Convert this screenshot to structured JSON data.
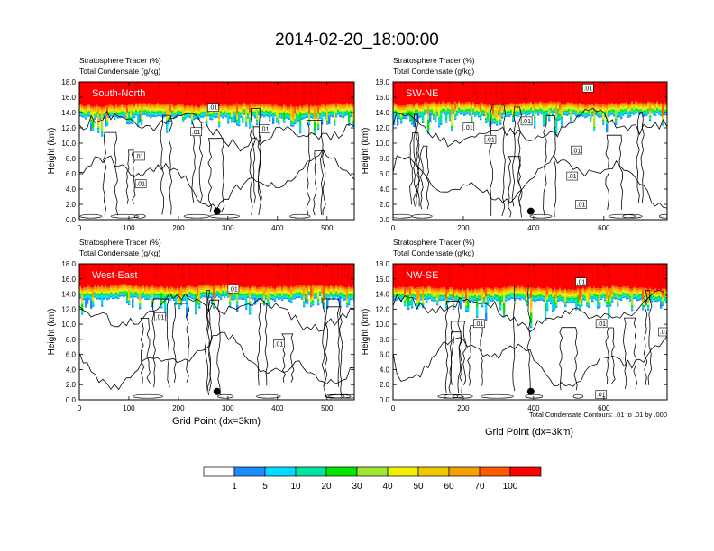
{
  "title": "2014-02-20_18:00:00",
  "colors": [
    "#ffffff",
    "#1e8cff",
    "#00dcff",
    "#00e6a0",
    "#00e600",
    "#a0e632",
    "#f0f000",
    "#f0c800",
    "#f5a000",
    "#ff5a00",
    "#ff0000"
  ],
  "chart_data": {
    "type": "heatmap",
    "variables": {
      "shaded": "Stratosphere Tracer (%)",
      "contour": "Total Condensate (g/kg)"
    },
    "colorbar": {
      "levels": [
        1,
        5,
        10,
        20,
        30,
        40,
        50,
        60,
        70,
        100
      ],
      "label_values": [
        "1",
        "5",
        "10",
        "20",
        "30",
        "40",
        "50",
        "60",
        "70",
        "100"
      ]
    },
    "contour_info": "Total Condensate Contours: .01 to .01 by .000",
    "contour_level": 0.01,
    "contour_label": ".01",
    "axes": {
      "xlabel": "Grid Point (dx=3km)",
      "ylabel": "Height (km)",
      "ylim": [
        0,
        18
      ],
      "yticks": [
        "0.0",
        "2.0",
        "4.0",
        "6.0",
        "8.0",
        "10.0",
        "12.0",
        "14.0",
        "16.0",
        "18.0"
      ]
    },
    "panels": [
      {
        "id": "south-north",
        "name": "South-North",
        "xmax": 555,
        "xticks": [
          "0",
          "100",
          "200",
          "300",
          "400",
          "500"
        ],
        "tracer_bottom_km": 15.0,
        "marker": {
          "x": 278,
          "y_km": 1.1
        },
        "contour_labels": [
          {
            "x": 270,
            "y": 14.7
          },
          {
            "x": 236,
            "y": 11.5
          },
          {
            "x": 374,
            "y": 11.9
          },
          {
            "x": 121,
            "y": 8.3
          },
          {
            "x": 124,
            "y": 4.7
          }
        ]
      },
      {
        "id": "sw-ne",
        "name": "SW-NE",
        "xmax": 780,
        "xticks": [
          "0",
          "200",
          "400",
          "600"
        ],
        "tracer_bottom_km": 15.2,
        "marker": {
          "x": 392,
          "y_km": 1.1
        },
        "contour_labels": [
          {
            "x": 555,
            "y": 17.2
          },
          {
            "x": 380,
            "y": 12.9
          },
          {
            "x": 215,
            "y": 12.1
          },
          {
            "x": 277,
            "y": 10.5
          },
          {
            "x": 522,
            "y": 9.1
          },
          {
            "x": 510,
            "y": 5.7
          },
          {
            "x": 535,
            "y": 2.0
          }
        ]
      },
      {
        "id": "west-east",
        "name": "West-East",
        "xmax": 555,
        "xticks": [
          "0",
          "100",
          "200",
          "300",
          "400",
          "500"
        ],
        "tracer_bottom_km": 15.0,
        "marker": {
          "x": 278,
          "y_km": 1.1
        },
        "contour_labels": [
          {
            "x": 311,
            "y": 14.7
          },
          {
            "x": 163,
            "y": 11.0
          },
          {
            "x": 403,
            "y": 7.4
          }
        ]
      },
      {
        "id": "nw-se",
        "name": "NW-SE",
        "xmax": 780,
        "xticks": [
          "0",
          "200",
          "400",
          "600"
        ],
        "tracer_bottom_km": 14.8,
        "marker": {
          "x": 392,
          "y_km": 1.1
        },
        "contour_labels": [
          {
            "x": 535,
            "y": 15.6
          },
          {
            "x": 245,
            "y": 10.1
          },
          {
            "x": 593,
            "y": 10.1
          },
          {
            "x": 771,
            "y": 9.0
          },
          {
            "x": 592,
            "y": 0.7
          }
        ]
      }
    ]
  }
}
